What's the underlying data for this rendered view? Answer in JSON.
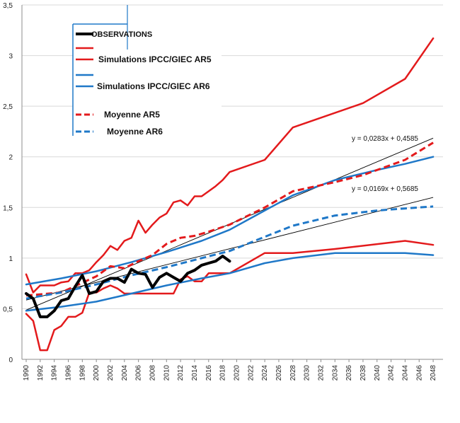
{
  "chart_data": {
    "type": "line",
    "xlim": [
      1990,
      2049
    ],
    "ylim": [
      0,
      3.5
    ],
    "grid": "horizontal",
    "legend_position": "top-left",
    "x_ticks": [
      1990,
      1992,
      1994,
      1996,
      1998,
      2000,
      2002,
      2004,
      2006,
      2008,
      2010,
      2012,
      2014,
      2016,
      2018,
      2020,
      2022,
      2024,
      2026,
      2028,
      2030,
      2032,
      2034,
      2036,
      2038,
      2040,
      2042,
      2044,
      2046,
      2048
    ],
    "y_ticks": [
      {
        "value": 0,
        "label": "0"
      },
      {
        "value": 0.5,
        "label": "0,5"
      },
      {
        "value": 1,
        "label": "1"
      },
      {
        "value": 1.5,
        "label": "1,5"
      },
      {
        "value": 2,
        "label": "2"
      },
      {
        "value": 2.5,
        "label": "2,5"
      },
      {
        "value": 3,
        "label": "3"
      },
      {
        "value": 3.5,
        "label": "3,5"
      }
    ],
    "series": [
      {
        "name": "OBSERVATIONS",
        "color": "#000000",
        "style": "solid",
        "width": 4,
        "x": [
          1990,
          1991,
          1992,
          1993,
          1994,
          1995,
          1996,
          1997,
          1998,
          1999,
          2000,
          2001,
          2002,
          2003,
          2004,
          2005,
          2006,
          2007,
          2008,
          2009,
          2010,
          2011,
          2012,
          2013,
          2014,
          2015,
          2016,
          2017,
          2018,
          2019
        ],
        "y": [
          0.65,
          0.6,
          0.42,
          0.42,
          0.48,
          0.58,
          0.6,
          0.72,
          0.83,
          0.65,
          0.67,
          0.77,
          0.8,
          0.8,
          0.76,
          0.89,
          0.85,
          0.84,
          0.71,
          0.81,
          0.85,
          0.81,
          0.77,
          0.85,
          0.88,
          0.93,
          0.95,
          0.97,
          1.02,
          0.97
        ]
      },
      {
        "name": "Simulations IPCC/GIEC AR5",
        "color": "#e31a1c",
        "style": "solid",
        "width": 2.5,
        "x": [
          1990,
          1991,
          1992,
          1993,
          1994,
          1995,
          1996,
          1997,
          1998,
          1999,
          2000,
          2001,
          2002,
          2003,
          2004,
          2005,
          2006,
          2007,
          2008,
          2009,
          2010,
          2011,
          2012,
          2013,
          2014,
          2015,
          2016,
          2017,
          2018,
          2019,
          2024,
          2028,
          2038,
          2044,
          2048
        ],
        "y": [
          0.84,
          0.66,
          0.73,
          0.73,
          0.73,
          0.76,
          0.77,
          0.85,
          0.85,
          0.88,
          0.96,
          1.03,
          1.12,
          1.08,
          1.17,
          1.2,
          1.37,
          1.25,
          1.33,
          1.4,
          1.44,
          1.55,
          1.57,
          1.52,
          1.61,
          1.61,
          1.66,
          1.71,
          1.77,
          1.85,
          1.97,
          2.29,
          2.53,
          2.77,
          3.17
        ]
      },
      {
        "name": "",
        "color": "#e31a1c",
        "style": "solid",
        "width": 2.5,
        "x": [
          1990,
          1991,
          1992,
          1993,
          1994,
          1995,
          1996,
          1997,
          1998,
          1999,
          2000,
          2001,
          2002,
          2003,
          2004,
          2005,
          2006,
          2007,
          2008,
          2009,
          2010,
          2011,
          2012,
          2013,
          2014,
          2015,
          2016,
          2017,
          2018,
          2019,
          2024,
          2028,
          2034,
          2044,
          2048
        ],
        "y": [
          0.45,
          0.38,
          0.09,
          0.09,
          0.29,
          0.33,
          0.42,
          0.42,
          0.46,
          0.66,
          0.66,
          0.7,
          0.73,
          0.7,
          0.65,
          0.65,
          0.65,
          0.65,
          0.65,
          0.65,
          0.65,
          0.65,
          0.79,
          0.82,
          0.77,
          0.77,
          0.85,
          0.85,
          0.85,
          0.85,
          1.05,
          1.05,
          1.09,
          1.17,
          1.13
        ]
      },
      {
        "name": "Simulations IPCC/GIEC AR6",
        "color": "#1f78c8",
        "style": "solid",
        "width": 2.5,
        "x": [
          1990,
          1995,
          2000,
          2005,
          2010,
          2015,
          2019,
          2024,
          2028,
          2034,
          2040,
          2044,
          2048
        ],
        "y": [
          0.74,
          0.8,
          0.87,
          0.96,
          1.06,
          1.17,
          1.28,
          1.47,
          1.62,
          1.77,
          1.87,
          1.93,
          2.0
        ]
      },
      {
        "name": "",
        "color": "#1f78c8",
        "style": "solid",
        "width": 2.5,
        "x": [
          1990,
          1995,
          2000,
          2005,
          2010,
          2015,
          2019,
          2024,
          2028,
          2034,
          2040,
          2044,
          2048
        ],
        "y": [
          0.48,
          0.52,
          0.57,
          0.65,
          0.73,
          0.8,
          0.85,
          0.95,
          1.0,
          1.05,
          1.05,
          1.05,
          1.03
        ]
      },
      {
        "name": "Moyenne  AR5",
        "color": "#e31a1c",
        "style": "dashed",
        "width": 3,
        "x": [
          1990,
          1995,
          2000,
          2002,
          2004,
          2006,
          2008,
          2010,
          2012,
          2014,
          2016,
          2019,
          2024,
          2028,
          2034,
          2038,
          2044,
          2048
        ],
        "y": [
          0.63,
          0.66,
          0.82,
          0.92,
          0.9,
          0.97,
          1.03,
          1.14,
          1.2,
          1.22,
          1.26,
          1.33,
          1.5,
          1.66,
          1.75,
          1.82,
          1.97,
          2.14
        ]
      },
      {
        "name": "Moyenne  AR6",
        "color": "#1f78c8",
        "style": "dashed",
        "width": 3,
        "x": [
          1990,
          1995,
          2000,
          2005,
          2010,
          2015,
          2019,
          2024,
          2028,
          2034,
          2040,
          2044,
          2048
        ],
        "y": [
          0.6,
          0.66,
          0.74,
          0.83,
          0.91,
          1.0,
          1.07,
          1.21,
          1.32,
          1.42,
          1.47,
          1.49,
          1.51
        ]
      }
    ],
    "trendlines": [
      {
        "label": "y = 0,0283x + 0,4585",
        "x": [
          1990,
          2048
        ],
        "y": [
          0.4868,
          2.1846
        ]
      },
      {
        "label": "y = 0,0169x + 0,5685",
        "x": [
          1990,
          2048
        ],
        "y": [
          0.5854,
          1.5996
        ]
      }
    ],
    "legend": [
      {
        "label": "OBSERVATIONS",
        "color": "#000000",
        "style": "solid",
        "width": 4
      },
      {
        "label": "Simulations IPCC/GIEC AR5",
        "color": "#e31a1c",
        "style": "solid",
        "width": 2.5
      },
      {
        "label": "Simulations IPCC/GIEC AR6",
        "color": "#1f78c8",
        "style": "solid",
        "width": 2.5
      },
      {
        "label": "Moyenne  AR5",
        "color": "#e31a1c",
        "style": "dashed",
        "width": 3
      },
      {
        "label": "Moyenne  AR6",
        "color": "#1f78c8",
        "style": "dashed",
        "width": 3
      }
    ]
  }
}
